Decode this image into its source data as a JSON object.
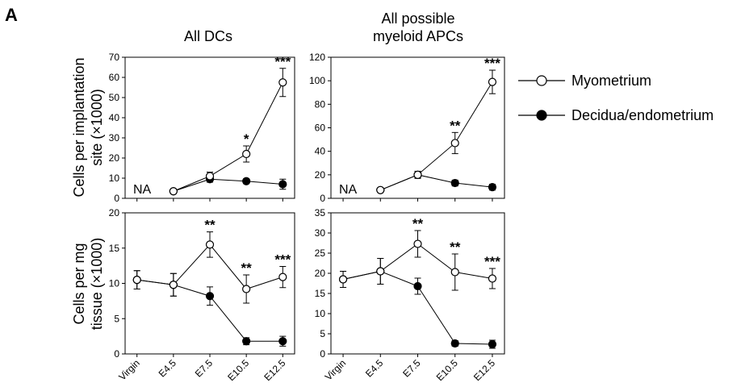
{
  "figure": {
    "panel_letter": "A",
    "col_titles": [
      [
        "All DCs"
      ],
      [
        "All possible",
        "myeloid APCs"
      ]
    ],
    "row_ylabels": [
      [
        "Cells per implantation",
        "site (×1000)"
      ],
      [
        "Cells per mg",
        "tissue (×1000)"
      ]
    ],
    "legend": [
      {
        "label": "Myometrium",
        "marker": "open"
      },
      {
        "label": "Decidua/endometrium",
        "marker": "filled"
      }
    ]
  },
  "chart_data": [
    {
      "type": "line",
      "title": "All DCs",
      "ylabel": "Cells per implantation site (×1000)",
      "categories": [
        "Virgin",
        "E4.5",
        "E7.5",
        "E10.5",
        "E12.5"
      ],
      "ylim": [
        0,
        70
      ],
      "yticks": [
        0,
        10,
        20,
        30,
        40,
        50,
        60,
        70
      ],
      "annotation_text": "NA",
      "series": [
        {
          "name": "Myometrium",
          "values": [
            null,
            3.5,
            11,
            22,
            57.5
          ],
          "err": [
            null,
            0.5,
            2,
            4,
            7
          ]
        },
        {
          "name": "Decidua/endometrium",
          "values": [
            null,
            3.5,
            9.5,
            8.5,
            7
          ],
          "err": [
            null,
            0.5,
            1.5,
            1.2,
            2.5
          ]
        }
      ],
      "significance": [
        null,
        null,
        null,
        "*",
        "***"
      ]
    },
    {
      "type": "line",
      "title": "All possible myeloid APCs",
      "ylabel": "",
      "categories": [
        "Virgin",
        "E4.5",
        "E7.5",
        "E10.5",
        "E12.5"
      ],
      "ylim": [
        0,
        120
      ],
      "yticks": [
        0,
        20,
        40,
        60,
        80,
        100,
        120
      ],
      "annotation_text": "NA",
      "series": [
        {
          "name": "Myometrium",
          "values": [
            null,
            7,
            20,
            47,
            99
          ],
          "err": [
            null,
            1,
            3,
            9,
            10
          ]
        },
        {
          "name": "Decidua/endometrium",
          "values": [
            null,
            7,
            20,
            13,
            9.5
          ],
          "err": [
            null,
            1,
            3,
            2.5,
            2.5
          ]
        }
      ],
      "significance": [
        null,
        null,
        null,
        "**",
        "***"
      ]
    },
    {
      "type": "line",
      "title": "",
      "ylabel": "Cells per mg tissue (×1000)",
      "categories": [
        "Virgin",
        "E4.5",
        "E7.5",
        "E10.5",
        "E12.5"
      ],
      "ylim": [
        0,
        20
      ],
      "yticks": [
        0,
        5,
        10,
        15,
        20
      ],
      "annotation_text": "",
      "series": [
        {
          "name": "Myometrium",
          "values": [
            10.5,
            9.8,
            15.5,
            9.2,
            10.9
          ],
          "err": [
            1.3,
            1.6,
            1.8,
            2.0,
            1.5
          ]
        },
        {
          "name": "Decidua/endometrium",
          "values": [
            10.5,
            9.8,
            8.2,
            1.8,
            1.8
          ],
          "err": [
            1.3,
            1.6,
            1.3,
            0.5,
            0.7
          ]
        }
      ],
      "significance": [
        null,
        null,
        "**",
        "**",
        "***"
      ]
    },
    {
      "type": "line",
      "title": "",
      "ylabel": "",
      "categories": [
        "Virgin",
        "E4.5",
        "E7.5",
        "E10.5",
        "E12.5"
      ],
      "ylim": [
        0,
        35
      ],
      "yticks": [
        0,
        5,
        10,
        15,
        20,
        25,
        30,
        35
      ],
      "annotation_text": "",
      "series": [
        {
          "name": "Myometrium",
          "values": [
            18.5,
            20.5,
            27.3,
            20.3,
            18.7
          ],
          "err": [
            2,
            3.2,
            3.3,
            4.5,
            2.5
          ]
        },
        {
          "name": "Decidua/endometrium",
          "values": [
            18.5,
            20.5,
            16.8,
            2.6,
            2.4
          ],
          "err": [
            2,
            3.2,
            2,
            0.7,
            1
          ]
        }
      ],
      "significance": [
        null,
        null,
        "**",
        "**",
        "***"
      ]
    }
  ]
}
